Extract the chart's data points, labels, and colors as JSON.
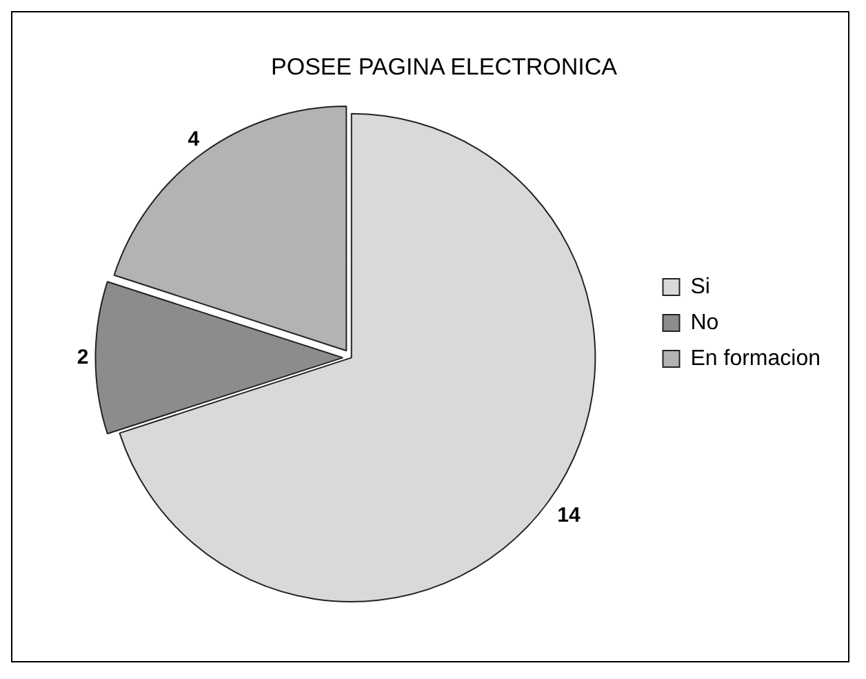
{
  "chart_data": {
    "type": "pie",
    "title": "POSEE PAGINA ELECTRONICA",
    "categories": [
      "Si",
      "No",
      "En formacion"
    ],
    "values": [
      14,
      2,
      4
    ],
    "colors": [
      "#d9d9d9",
      "#8c8c8c",
      "#b3b3b3"
    ],
    "data_labels": true,
    "legend": "right"
  }
}
